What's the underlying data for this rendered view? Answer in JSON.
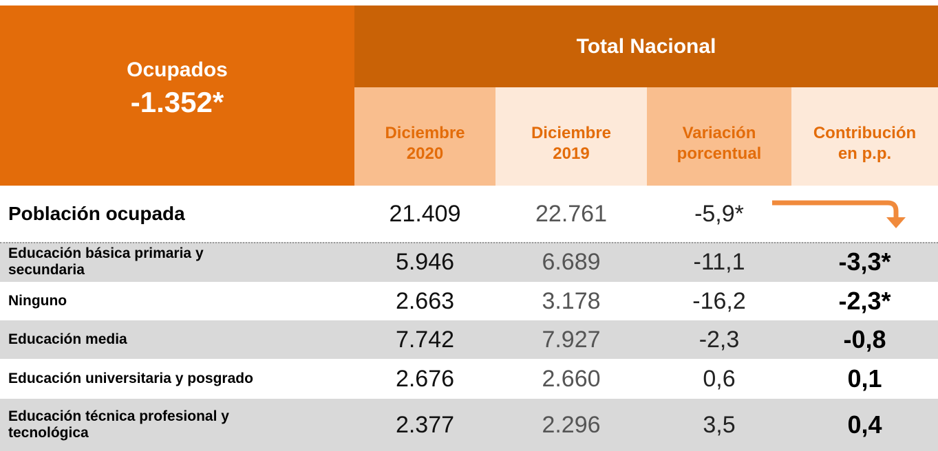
{
  "header": {
    "left_title": "Ocupados",
    "left_value": "-1.352*",
    "group": "Total Nacional",
    "columns": [
      [
        "Diciembre",
        "2020"
      ],
      [
        "Diciembre",
        "2019"
      ],
      [
        "Variación",
        "porcentual"
      ],
      [
        "Contribución",
        "en p.p."
      ]
    ]
  },
  "rows": [
    {
      "label": [
        "Población ocupada"
      ],
      "values": [
        "21.409",
        "22.761",
        "-5,9*"
      ]
    },
    {
      "label": [
        "Educación básica primaria y",
        "secundaria"
      ],
      "values": [
        "5.946",
        "6.689",
        "-11,1",
        "-3,3*"
      ]
    },
    {
      "label": [
        "Ninguno"
      ],
      "values": [
        "2.663",
        "3.178",
        "-16,2",
        "-2,3*"
      ]
    },
    {
      "label": [
        "Educación media"
      ],
      "values": [
        "7.742",
        "7.927",
        "-2,3",
        "-0,8"
      ]
    },
    {
      "label": [
        "Educación universitaria y posgrado"
      ],
      "values": [
        "2.676",
        "2.660",
        "0,6",
        "0,1"
      ]
    },
    {
      "label": [
        "Educación técnica profesional y",
        "tecnológica"
      ],
      "values": [
        "2.377",
        "2.296",
        "3,5",
        "0,4"
      ]
    }
  ]
}
